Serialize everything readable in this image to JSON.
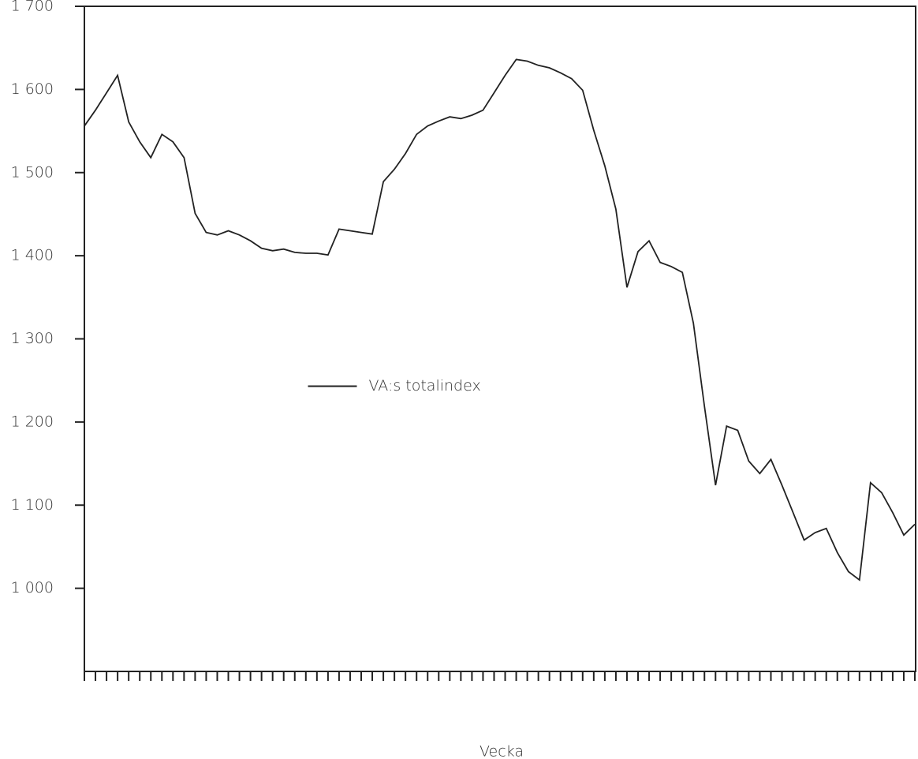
{
  "chart_data": {
    "type": "line",
    "x_label": "Vecka",
    "categories": [
      null,
      null,
      null,
      null,
      null,
      null,
      null,
      null,
      null,
      null,
      null,
      null,
      null,
      null,
      null,
      null,
      null,
      null,
      null,
      null,
      null,
      null,
      null,
      null,
      null,
      null,
      null,
      null,
      null,
      null,
      null,
      null,
      null,
      null,
      null,
      null,
      null,
      null,
      null,
      null,
      null,
      null,
      null,
      null,
      null,
      null,
      null,
      null,
      null,
      null,
      null,
      null,
      null,
      null,
      null,
      null,
      null,
      null,
      null,
      null,
      null,
      null,
      null,
      null,
      null,
      null,
      null,
      null,
      null,
      null,
      null,
      null,
      null,
      null,
      null,
      null
    ],
    "series": [
      {
        "name": "VA:s totalindex",
        "color": "#222222",
        "values": [
          1556,
          1575,
          1596,
          1617,
          1561,
          1537,
          1518,
          1546,
          1537,
          1518,
          1451,
          1428,
          1425,
          1430,
          1425,
          1418,
          1409,
          1406,
          1408,
          1404,
          1403,
          1403,
          1401,
          1432,
          1430,
          1428,
          1426,
          1489,
          1504,
          1523,
          1546,
          1556,
          1562,
          1567,
          1565,
          1569,
          1575,
          1596,
          1617,
          1636,
          1634,
          1629,
          1626,
          1620,
          1613,
          1599,
          1551,
          1508,
          1456,
          1362,
          1405,
          1418,
          1392,
          1387,
          1380,
          1319,
          1219,
          1124,
          1195,
          1190,
          1153,
          1138,
          1155,
          1124,
          1091,
          1058,
          1067,
          1072,
          1043,
          1020,
          1010,
          1127,
          1115,
          1091,
          1064,
          1077
        ]
      }
    ],
    "ylim": [
      900,
      1700
    ],
    "yticks": [
      {
        "value": 1000,
        "label": "1 000"
      },
      {
        "value": 1100,
        "label": "1 100"
      },
      {
        "value": 1200,
        "label": "1 200"
      },
      {
        "value": 1300,
        "label": "1 300"
      },
      {
        "value": 1400,
        "label": "1 400"
      },
      {
        "value": 1500,
        "label": "1 500"
      },
      {
        "value": 1600,
        "label": "1 600"
      },
      {
        "value": 1700,
        "label": "1 700"
      }
    ],
    "grid": false,
    "legend": "center"
  }
}
